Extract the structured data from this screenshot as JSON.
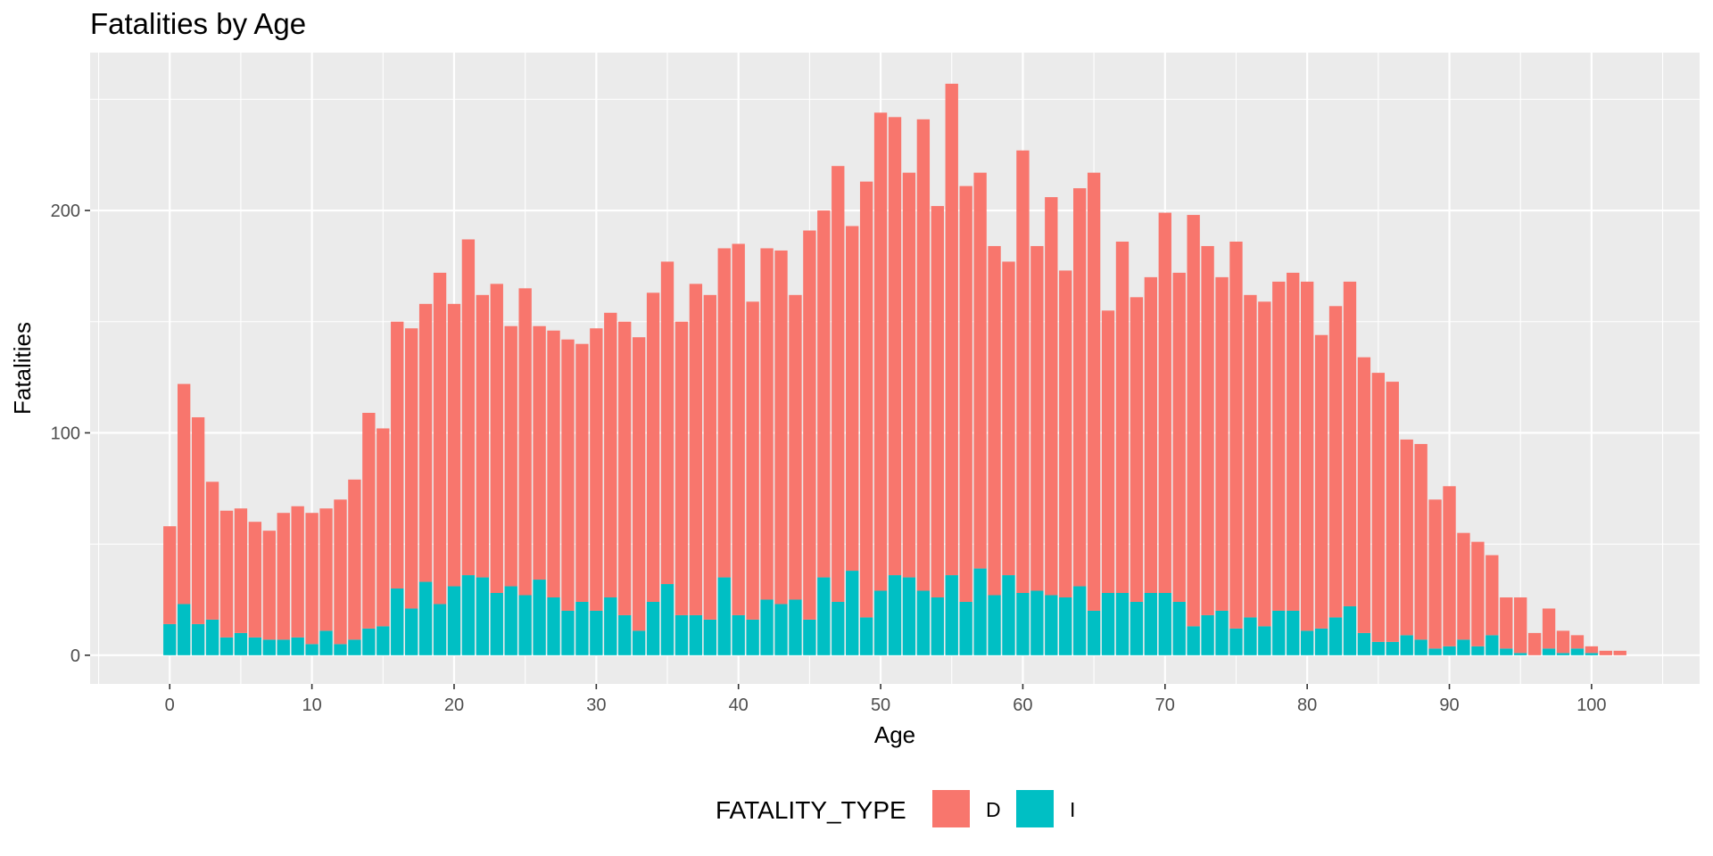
{
  "chart_data": {
    "type": "bar",
    "stacked": true,
    "title": "Fatalities by Age",
    "xlabel": "Age",
    "ylabel": "Fatalities",
    "xlim": [
      -5.6,
      107.6
    ],
    "ylim": [
      -12.9,
      271
    ],
    "x_ticks": [
      0,
      10,
      20,
      30,
      40,
      50,
      60,
      70,
      80,
      90,
      100
    ],
    "y_ticks": [
      0,
      100,
      200
    ],
    "grid": true,
    "legend": {
      "title": "FATALITY_TYPE",
      "position": "bottom"
    },
    "x": [
      0,
      1,
      2,
      3,
      4,
      5,
      6,
      7,
      8,
      9,
      10,
      11,
      12,
      13,
      14,
      15,
      16,
      17,
      18,
      19,
      20,
      21,
      22,
      23,
      24,
      25,
      26,
      27,
      28,
      29,
      30,
      31,
      32,
      33,
      34,
      35,
      36,
      37,
      38,
      39,
      40,
      41,
      42,
      43,
      44,
      45,
      46,
      47,
      48,
      49,
      50,
      51,
      52,
      53,
      54,
      55,
      56,
      57,
      58,
      59,
      60,
      61,
      62,
      63,
      64,
      65,
      66,
      67,
      68,
      69,
      70,
      71,
      72,
      73,
      74,
      75,
      76,
      77,
      78,
      79,
      80,
      81,
      82,
      83,
      84,
      85,
      86,
      87,
      88,
      89,
      90,
      91,
      92,
      93,
      94,
      95,
      96,
      97,
      98,
      99,
      100,
      101,
      102
    ],
    "series": [
      {
        "name": "D",
        "color": "#F8766D",
        "values": [
          44,
          99,
          93,
          62,
          57,
          56,
          52,
          49,
          57,
          59,
          59,
          55,
          65,
          72,
          97,
          89,
          120,
          126,
          125,
          149,
          127,
          151,
          127,
          139,
          117,
          138,
          114,
          120,
          122,
          116,
          127,
          128,
          132,
          132,
          139,
          145,
          132,
          149,
          146,
          148,
          167,
          143,
          158,
          159,
          137,
          175,
          165,
          196,
          155,
          196,
          215,
          206,
          182,
          212,
          176,
          221,
          187,
          178,
          157,
          141,
          199,
          155,
          179,
          147,
          179,
          197,
          127,
          158,
          137,
          142,
          171,
          148,
          185,
          166,
          150,
          174,
          145,
          146,
          148,
          152,
          157,
          132,
          140,
          146,
          124,
          121,
          117,
          88,
          88,
          67,
          72,
          48,
          47,
          36,
          23,
          25,
          10,
          18,
          10,
          6,
          3,
          2,
          2
        ]
      },
      {
        "name": "I",
        "color": "#00BFC4",
        "values": [
          14,
          23,
          14,
          16,
          8,
          10,
          8,
          7,
          7,
          8,
          5,
          11,
          5,
          7,
          12,
          13,
          30,
          21,
          33,
          23,
          31,
          36,
          35,
          28,
          31,
          27,
          34,
          26,
          20,
          24,
          20,
          26,
          18,
          11,
          24,
          32,
          18,
          18,
          16,
          35,
          18,
          16,
          25,
          23,
          25,
          16,
          35,
          24,
          38,
          17,
          29,
          36,
          35,
          29,
          26,
          36,
          24,
          39,
          27,
          36,
          28,
          29,
          27,
          26,
          31,
          20,
          28,
          28,
          24,
          28,
          28,
          24,
          13,
          18,
          20,
          12,
          17,
          13,
          20,
          20,
          11,
          12,
          17,
          22,
          10,
          6,
          6,
          9,
          7,
          3,
          4,
          7,
          4,
          9,
          3,
          1,
          0,
          3,
          1,
          3,
          1,
          0,
          0
        ]
      }
    ]
  }
}
